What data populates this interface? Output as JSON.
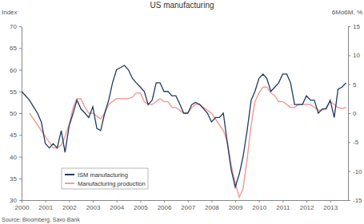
{
  "chart_data": {
    "type": "line",
    "title": "US manufacturing",
    "y_label": "Index",
    "y2_label": "6Mo6M, %",
    "source": "Source: Bloomberg, Saxo Bank",
    "x": [
      2000,
      2000.17,
      2000.33,
      2000.5,
      2000.67,
      2000.83,
      2001,
      2001.17,
      2001.33,
      2001.5,
      2001.67,
      2001.83,
      2002,
      2002.17,
      2002.33,
      2002.5,
      2002.67,
      2002.83,
      2003,
      2003.17,
      2003.33,
      2003.5,
      2003.67,
      2003.83,
      2004,
      2004.17,
      2004.33,
      2004.5,
      2004.67,
      2004.83,
      2005,
      2005.17,
      2005.33,
      2005.5,
      2005.67,
      2005.83,
      2006,
      2006.17,
      2006.33,
      2006.5,
      2006.67,
      2006.83,
      2007,
      2007.17,
      2007.33,
      2007.5,
      2007.67,
      2007.83,
      2008,
      2008.17,
      2008.33,
      2008.5,
      2008.67,
      2008.83,
      2009,
      2009.17,
      2009.33,
      2009.5,
      2009.67,
      2009.83,
      2010,
      2010.17,
      2010.33,
      2010.5,
      2010.67,
      2010.83,
      2011,
      2011.17,
      2011.33,
      2011.5,
      2011.67,
      2011.83,
      2012,
      2012.17,
      2012.33,
      2012.5,
      2012.67,
      2012.83,
      2013,
      2013.17,
      2013.33,
      2013.5,
      2013.67
    ],
    "xlim": [
      2000,
      2013.75
    ],
    "xticks": [
      2000,
      2001,
      2002,
      2003,
      2004,
      2005,
      2006,
      2007,
      2008,
      2009,
      2010,
      2011,
      2012,
      2013
    ],
    "ylim": [
      30,
      70
    ],
    "yticks": [
      30,
      35,
      40,
      45,
      50,
      55,
      60,
      65,
      70
    ],
    "y2lim": [
      -15,
      15
    ],
    "y2ticks": [
      -15,
      -10,
      -5,
      0,
      5,
      10,
      15
    ],
    "grid": false,
    "legend": "lower left",
    "series": [
      {
        "name": "ISM manufacturing",
        "color": "#1f3a5f",
        "values": [
          55,
          54,
          53,
          51.5,
          50,
          48,
          43,
          42,
          43,
          42,
          46,
          41,
          47,
          50,
          53,
          51,
          50,
          49,
          51.5,
          46.5,
          46,
          50,
          53,
          57,
          60,
          60.5,
          61,
          60,
          58,
          57,
          56,
          55,
          52,
          53,
          57,
          57,
          55,
          55,
          54,
          54,
          52,
          50,
          50,
          52,
          52.5,
          52,
          51,
          50,
          48,
          49,
          49,
          50,
          43,
          37,
          33,
          36,
          40,
          46,
          53,
          55,
          58,
          59,
          58,
          55,
          56,
          57,
          59,
          59,
          57,
          52,
          52,
          52,
          54,
          53,
          53,
          50,
          51,
          51,
          53,
          49,
          55.5,
          56,
          57
        ]
      },
      {
        "name": "Manufacturing production",
        "color": "#f0a09a",
        "axis": "y2",
        "values": [
          null,
          null,
          0,
          -1,
          -2,
          -3,
          -4,
          -5,
          -6,
          -6,
          -5.5,
          -4,
          -2,
          1,
          2.5,
          2.5,
          1,
          0,
          0,
          -0.5,
          -1,
          0,
          1.5,
          2,
          2.5,
          2.5,
          2.5,
          2.5,
          2.8,
          3.5,
          3.5,
          2,
          1.5,
          1.5,
          2,
          2.5,
          2,
          2,
          1,
          1,
          0.5,
          0,
          0,
          1,
          1.5,
          1.5,
          1,
          0.5,
          0,
          -1,
          -2,
          -3,
          -5,
          -9,
          -12,
          -14.5,
          -13,
          -8,
          -2,
          2,
          3.5,
          4.5,
          4.5,
          3.5,
          3,
          2,
          2,
          1.5,
          1,
          1,
          1.5,
          1.5,
          1.5,
          1.5,
          1,
          0.5,
          0.5,
          1,
          2,
          1.5,
          1,
          0.8,
          1
        ]
      }
    ]
  }
}
